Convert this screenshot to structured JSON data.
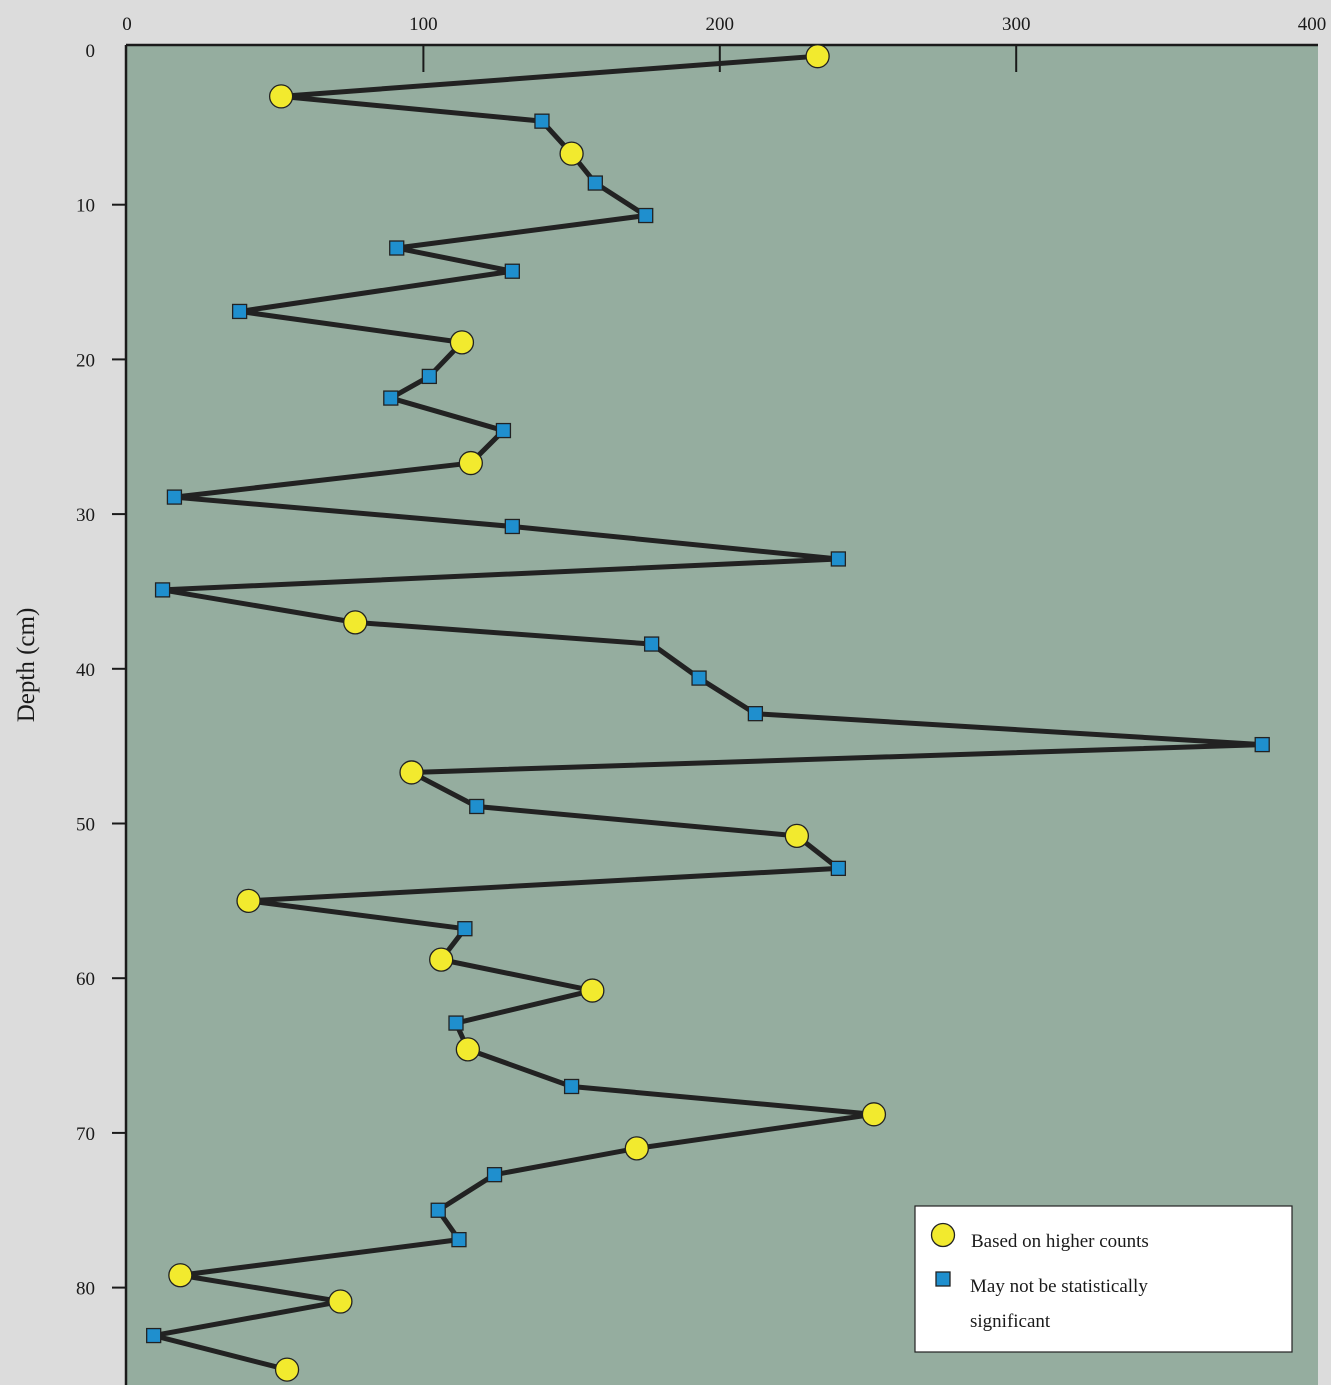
{
  "chart_data": {
    "type": "line",
    "title": "",
    "xlabel": "",
    "ylabel": "Depth (cm)",
    "xlim": [
      0,
      400
    ],
    "ylim": [
      0,
      86
    ],
    "y_reversed": true,
    "x_ticks": [
      0,
      100,
      200,
      300,
      400
    ],
    "y_ticks": [
      0,
      10,
      20,
      30,
      40,
      50,
      60,
      70,
      80
    ],
    "x_ticks_labeled": [
      "0",
      "100",
      "200",
      "300",
      "400"
    ],
    "y_ticks_labeled": [
      "0",
      "10",
      "20",
      "30",
      "40",
      "50",
      "60",
      "70",
      "80"
    ],
    "grid": false,
    "legend_position": "bottom-right",
    "colors": {
      "page_background": "#dcdcdc",
      "plot_background": "#95ad9f",
      "line": "#222222",
      "circle_fill": "#f2ea2e",
      "square_fill": "#1f8fce"
    },
    "legend": [
      {
        "marker": "circle",
        "label": "Based on higher counts"
      },
      {
        "marker": "square",
        "label": "May not be statistically significant"
      }
    ],
    "points": [
      {
        "x": 233,
        "y": 0.4,
        "marker": "circle"
      },
      {
        "x": 52,
        "y": 3.0,
        "marker": "circle"
      },
      {
        "x": 140,
        "y": 4.6,
        "marker": "square"
      },
      {
        "x": 150,
        "y": 6.7,
        "marker": "circle"
      },
      {
        "x": 158,
        "y": 8.6,
        "marker": "square"
      },
      {
        "x": 175,
        "y": 10.7,
        "marker": "square"
      },
      {
        "x": 91,
        "y": 12.8,
        "marker": "square"
      },
      {
        "x": 130,
        "y": 14.3,
        "marker": "square"
      },
      {
        "x": 38,
        "y": 16.9,
        "marker": "square"
      },
      {
        "x": 113,
        "y": 18.9,
        "marker": "circle"
      },
      {
        "x": 102,
        "y": 21.1,
        "marker": "square"
      },
      {
        "x": 89,
        "y": 22.5,
        "marker": "square"
      },
      {
        "x": 127,
        "y": 24.6,
        "marker": "square"
      },
      {
        "x": 116,
        "y": 26.7,
        "marker": "circle"
      },
      {
        "x": 16,
        "y": 28.9,
        "marker": "square"
      },
      {
        "x": 130,
        "y": 30.8,
        "marker": "square"
      },
      {
        "x": 240,
        "y": 32.9,
        "marker": "square"
      },
      {
        "x": 12,
        "y": 34.9,
        "marker": "square"
      },
      {
        "x": 77,
        "y": 37.0,
        "marker": "circle"
      },
      {
        "x": 177,
        "y": 38.4,
        "marker": "square"
      },
      {
        "x": 193,
        "y": 40.6,
        "marker": "square"
      },
      {
        "x": 212,
        "y": 42.9,
        "marker": "square"
      },
      {
        "x": 383,
        "y": 44.9,
        "marker": "square"
      },
      {
        "x": 96,
        "y": 46.7,
        "marker": "circle"
      },
      {
        "x": 118,
        "y": 48.9,
        "marker": "square"
      },
      {
        "x": 226,
        "y": 50.8,
        "marker": "circle"
      },
      {
        "x": 240,
        "y": 52.9,
        "marker": "square"
      },
      {
        "x": 41,
        "y": 55.0,
        "marker": "circle"
      },
      {
        "x": 114,
        "y": 56.8,
        "marker": "square"
      },
      {
        "x": 106,
        "y": 58.8,
        "marker": "circle"
      },
      {
        "x": 157,
        "y": 60.8,
        "marker": "circle"
      },
      {
        "x": 111,
        "y": 62.9,
        "marker": "square"
      },
      {
        "x": 115,
        "y": 64.6,
        "marker": "circle"
      },
      {
        "x": 150,
        "y": 67.0,
        "marker": "square"
      },
      {
        "x": 252,
        "y": 68.8,
        "marker": "circle"
      },
      {
        "x": 172,
        "y": 71.0,
        "marker": "circle"
      },
      {
        "x": 124,
        "y": 72.7,
        "marker": "square"
      },
      {
        "x": 105,
        "y": 75.0,
        "marker": "square"
      },
      {
        "x": 112,
        "y": 76.9,
        "marker": "square"
      },
      {
        "x": 18,
        "y": 79.2,
        "marker": "circle"
      },
      {
        "x": 72,
        "y": 80.9,
        "marker": "circle"
      },
      {
        "x": 9,
        "y": 83.1,
        "marker": "square"
      },
      {
        "x": 54,
        "y": 85.3,
        "marker": "circle"
      }
    ]
  }
}
